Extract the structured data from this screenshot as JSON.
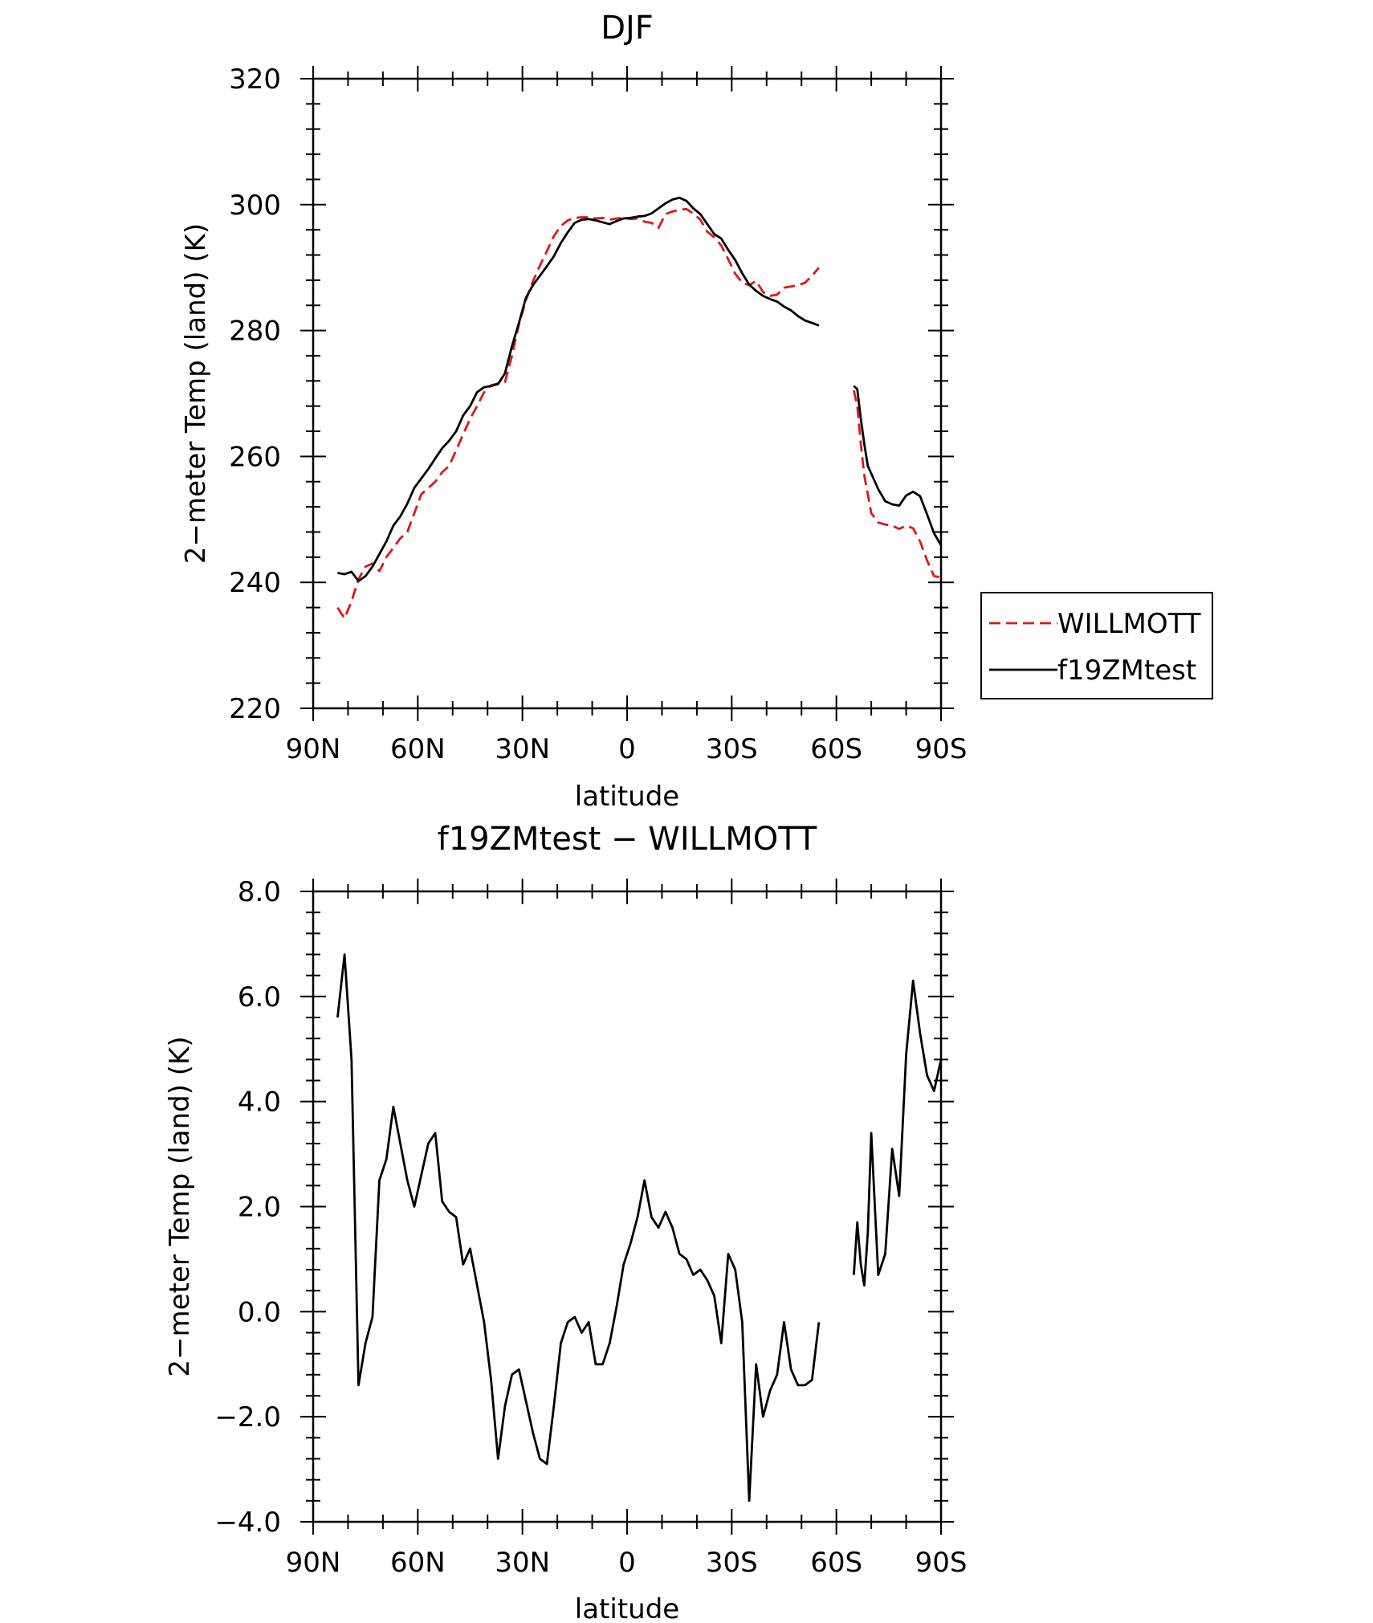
{
  "chart_data": [
    {
      "type": "line",
      "title": "DJF",
      "xlabel": "latitude",
      "ylabel": "2−meter Temp (land) (K)",
      "xlim": [
        90,
        -90
      ],
      "ylim": [
        220,
        320
      ],
      "xticks": [
        90,
        60,
        30,
        0,
        -30,
        -60,
        -90
      ],
      "xtick_labels": [
        "90N",
        "60N",
        "30N",
        "0",
        "30S",
        "60S",
        "90S"
      ],
      "yticks": [
        220,
        240,
        260,
        280,
        300,
        320
      ],
      "ytick_labels": [
        "220",
        "240",
        "260",
        "280",
        "300",
        "320"
      ],
      "grid": false,
      "legend": {
        "placement": "outside-right",
        "entries": [
          "WILLMOTT",
          "f19ZMtest"
        ]
      },
      "series": [
        {
          "name": "WILLMOTT",
          "color": "#e0161b",
          "dash": "dashed",
          "segments": [
            {
              "x": [
                83,
                81,
                79,
                77,
                75,
                73,
                71,
                69,
                67,
                65,
                63,
                61,
                59,
                57,
                55,
                53,
                51,
                49,
                47,
                45,
                43,
                41,
                39,
                37,
                35,
                33,
                31,
                29,
                27,
                25,
                23,
                21,
                19,
                17,
                15,
                13,
                11,
                9,
                7,
                5,
                3,
                1,
                -1,
                -3,
                -5,
                -7,
                -9,
                -11,
                -13,
                -15,
                -17,
                -19,
                -21,
                -23,
                -25,
                -27,
                -29,
                -31,
                -33,
                -35,
                -37,
                -39,
                -41,
                -43,
                -45,
                -47,
                -49,
                -51,
                -53,
                -55
              ],
              "y": [
                236,
                234.3,
                237,
                240.5,
                242.5,
                243,
                241.8,
                244,
                245.5,
                247,
                248,
                251,
                254,
                255,
                256,
                257.5,
                258.5,
                261,
                263.5,
                266,
                268,
                270.2,
                271.3,
                271.6,
                271.8,
                276,
                281,
                284.8,
                287.8,
                290.3,
                292.6,
                295,
                296.6,
                297.5,
                297.9,
                298,
                298,
                297.8,
                297.9,
                297.6,
                297.8,
                297.9,
                297.7,
                297.8,
                297.3,
                297.1,
                296.3,
                298.5,
                298.9,
                299.2,
                299.3,
                298.6,
                297.6,
                295.7,
                294.8,
                293.5,
                291.3,
                289,
                287.6,
                287.2,
                287.9,
                286.1,
                285.5,
                285.7,
                286.8,
                287,
                287.2,
                287.6,
                288.7,
                290
              ]
            },
            {
              "x": [
                -65,
                -66,
                -67,
                -68,
                -69,
                -70,
                -72,
                -74,
                -76,
                -78,
                -80,
                -82,
                -84,
                -86,
                -88,
                -90
              ],
              "y": [
                270.5,
                268,
                262,
                257,
                254,
                251,
                249.5,
                249.2,
                249,
                248.5,
                249,
                248.6,
                246.5,
                243.5,
                241,
                240.8
              ]
            }
          ]
        },
        {
          "name": "f19ZMtest",
          "color": "#000000",
          "dash": "solid",
          "segments": [
            {
              "x": [
                83,
                81,
                79,
                77,
                75,
                73,
                71,
                69,
                67,
                65,
                63,
                61,
                59,
                57,
                55,
                53,
                51,
                49,
                47,
                45,
                43,
                41,
                39,
                37,
                35,
                33,
                31,
                29,
                27,
                25,
                23,
                21,
                19,
                17,
                15,
                13,
                11,
                9,
                7,
                5,
                3,
                1,
                -1,
                -3,
                -5,
                -7,
                -9,
                -11,
                -13,
                -15,
                -17,
                -19,
                -21,
                -23,
                -25,
                -27,
                -29,
                -31,
                -33,
                -35,
                -37,
                -39,
                -41,
                -43,
                -45,
                -47,
                -49,
                -51,
                -53,
                -55
              ],
              "y": [
                241.5,
                241.3,
                241.7,
                240.2,
                241,
                242.5,
                244.5,
                246.5,
                249,
                250.5,
                252.5,
                255,
                256.5,
                258,
                259.7,
                261.3,
                262.5,
                264,
                266.5,
                268,
                270.2,
                271,
                271.2,
                271.5,
                273.2,
                277.5,
                281.2,
                285.2,
                287.2,
                288.7,
                290.2,
                291.8,
                293.9,
                295.6,
                297.1,
                297.6,
                297.7,
                297.5,
                297.2,
                296.9,
                297.4,
                297.8,
                297.9,
                298.1,
                298.2,
                298.6,
                299.4,
                300.2,
                300.8,
                301.1,
                300.6,
                299.4,
                298.5,
                296.9,
                295.3,
                294.6,
                292.8,
                291.2,
                289.1,
                287.3,
                286.3,
                285.5,
                285,
                284.6,
                283.8,
                283.2,
                282.3,
                281.6,
                281.2,
                280.8
              ]
            },
            {
              "x": [
                -65,
                -66,
                -67,
                -68,
                -69,
                -70,
                -72,
                -74,
                -76,
                -78,
                -80,
                -82,
                -84,
                -86,
                -88,
                -90
              ],
              "y": [
                271.2,
                270.7,
                266,
                262,
                258.5,
                257.3,
                254.8,
                252.9,
                252.4,
                252.2,
                253.8,
                254.4,
                253.7,
                250.8,
                247.8,
                245.9
              ]
            }
          ]
        }
      ]
    },
    {
      "type": "line",
      "title": "f19ZMtest − WILLMOTT",
      "xlabel": "latitude",
      "ylabel": "2−meter Temp (land) (K)",
      "xlim": [
        90,
        -90
      ],
      "ylim": [
        -4,
        8
      ],
      "xticks": [
        90,
        60,
        30,
        0,
        -30,
        -60,
        -90
      ],
      "xtick_labels": [
        "90N",
        "60N",
        "30N",
        "0",
        "30S",
        "60S",
        "90S"
      ],
      "yticks": [
        -4,
        -2,
        0,
        2,
        4,
        6,
        8
      ],
      "ytick_labels": [
        "−4.0",
        "−2.0",
        "0.0",
        "2.0",
        "4.0",
        "6.0",
        "8.0"
      ],
      "grid": false,
      "series": [
        {
          "color": "#000000",
          "dash": "solid",
          "segments": [
            {
              "x": [
                83,
                81,
                79,
                77,
                75,
                73,
                71,
                69,
                67,
                65,
                63,
                61,
                59,
                57,
                55,
                53,
                51,
                49,
                47,
                45,
                43,
                41,
                39,
                37,
                35,
                33,
                31,
                29,
                27,
                25,
                23,
                21,
                19,
                17,
                15,
                13,
                11,
                9,
                7,
                5,
                3,
                1,
                -1,
                -3,
                -5,
                -7,
                -9,
                -11,
                -13,
                -15,
                -17,
                -19,
                -21,
                -23,
                -25,
                -27,
                -29,
                -31,
                -33,
                -35,
                -37,
                -39,
                -41,
                -43,
                -45,
                -47,
                -49,
                -51,
                -53,
                -55
              ],
              "y": [
                5.6,
                6.8,
                4.8,
                -1.4,
                -0.6,
                -0.1,
                2.5,
                2.9,
                3.9,
                3.2,
                2.5,
                2.0,
                2.6,
                3.2,
                3.4,
                2.1,
                1.9,
                1.8,
                0.9,
                1.2,
                0.5,
                -0.2,
                -1.3,
                -2.8,
                -1.8,
                -1.2,
                -1.1,
                -1.7,
                -2.3,
                -2.8,
                -2.9,
                -1.8,
                -0.6,
                -0.2,
                -0.1,
                -0.4,
                -0.2,
                -1.0,
                -1.0,
                -0.6,
                0.1,
                0.9,
                1.3,
                1.8,
                2.5,
                1.8,
                1.6,
                1.9,
                1.6,
                1.1,
                1.0,
                0.7,
                0.8,
                0.6,
                0.3,
                -0.6,
                1.1,
                0.8,
                -0.2,
                -3.6,
                -1.0,
                -2.0,
                -1.5,
                -1.2,
                -0.2,
                -1.1,
                -1.4,
                -1.4,
                -1.3,
                -0.2
              ]
            },
            {
              "x": [
                -65,
                -66,
                -67,
                -68,
                -69,
                -70,
                -72,
                -74,
                -76,
                -78,
                -80,
                -82,
                -84,
                -86,
                -88,
                -90
              ],
              "y": [
                0.7,
                1.7,
                0.9,
                0.5,
                1.5,
                3.4,
                0.7,
                1.1,
                3.1,
                2.2,
                4.9,
                6.3,
                5.3,
                4.5,
                4.2,
                4.8
              ]
            }
          ]
        }
      ]
    }
  ]
}
